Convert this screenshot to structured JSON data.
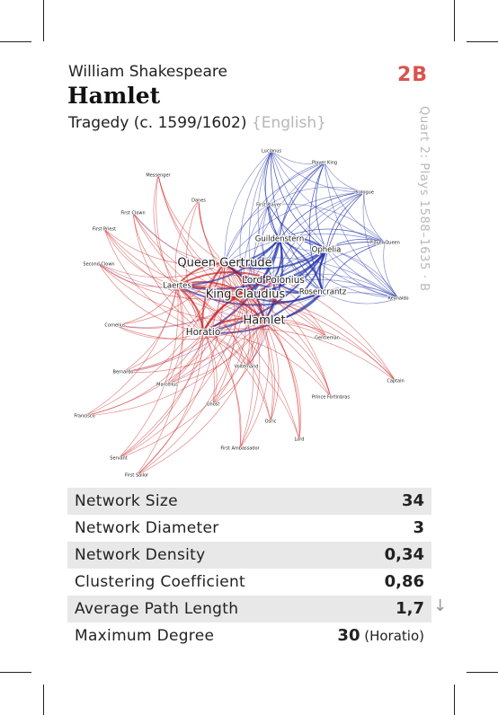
{
  "header": {
    "author": "William Shakespeare",
    "title": "Hamlet",
    "genre": "Tragedy (c. 1599/1602)",
    "language": "{English}",
    "code": "2B",
    "collection": "Quart 2: Plays 1588–1635 · B"
  },
  "network": {
    "colors": {
      "red": "#cc2222",
      "blue": "#2233aa",
      "purple": "#7a3a8a"
    },
    "nodes": [
      {
        "id": "hamlet",
        "label": "Hamlet",
        "size": "large"
      },
      {
        "id": "claudius",
        "label": "King Claudius",
        "size": "large"
      },
      {
        "id": "gertrude",
        "label": "Queen Gertrude",
        "size": "large"
      },
      {
        "id": "polonius",
        "label": "Lord Polonius",
        "size": "medium"
      },
      {
        "id": "horatio",
        "label": "Horatio",
        "size": "medium"
      },
      {
        "id": "laertes",
        "label": "Laertes",
        "size": "small"
      },
      {
        "id": "ophelia",
        "label": "Ophelia",
        "size": "small"
      },
      {
        "id": "rosencrantz",
        "label": "Rosencrantz",
        "size": "small"
      },
      {
        "id": "guildenstern",
        "label": "Guildenstern",
        "size": "small"
      },
      {
        "id": "lucianus",
        "label": "Lucianus",
        "size": "tiny"
      },
      {
        "id": "player_king",
        "label": "Player King",
        "size": "tiny"
      },
      {
        "id": "prologue",
        "label": "Prologue",
        "size": "tiny"
      },
      {
        "id": "player_queen",
        "label": "Player Queen",
        "size": "tiny"
      },
      {
        "id": "first_player",
        "label": "First Player",
        "size": "tiny"
      },
      {
        "id": "messenger",
        "label": "Messenger",
        "size": "tiny"
      },
      {
        "id": "danes",
        "label": "Danes",
        "size": "tiny"
      },
      {
        "id": "first_clown",
        "label": "First Clown",
        "size": "tiny"
      },
      {
        "id": "first_priest",
        "label": "First Priest",
        "size": "tiny"
      },
      {
        "id": "second_clown",
        "label": "Second Clown",
        "size": "tiny"
      },
      {
        "id": "reynaldo",
        "label": "Reynaldo",
        "size": "tiny"
      },
      {
        "id": "cornelius",
        "label": "Cornelius",
        "size": "tiny"
      },
      {
        "id": "gentleman",
        "label": "Gentleman",
        "size": "tiny"
      },
      {
        "id": "bernardo",
        "label": "Bernardo",
        "size": "tiny"
      },
      {
        "id": "voltemand",
        "label": "Voltemand",
        "size": "tiny"
      },
      {
        "id": "marcellus",
        "label": "Marcellus",
        "size": "tiny"
      },
      {
        "id": "captain",
        "label": "Captain",
        "size": "tiny"
      },
      {
        "id": "prince_fortinbras",
        "label": "Prince Fortinbras",
        "size": "tiny"
      },
      {
        "id": "ghost",
        "label": "Ghost",
        "size": "tiny"
      },
      {
        "id": "francisco",
        "label": "Francisco",
        "size": "tiny"
      },
      {
        "id": "osric",
        "label": "Osric",
        "size": "tiny"
      },
      {
        "id": "lord",
        "label": "Lord",
        "size": "tiny"
      },
      {
        "id": "first_ambassador",
        "label": "First Ambassador",
        "size": "tiny"
      },
      {
        "id": "servant",
        "label": "Servant",
        "size": "tiny"
      },
      {
        "id": "first_sailor",
        "label": "First Sailor",
        "size": "tiny"
      }
    ]
  },
  "stats": [
    {
      "label": "Network Size",
      "value": "34",
      "note": ""
    },
    {
      "label": "Network Diameter",
      "value": "3",
      "note": ""
    },
    {
      "label": "Network Density",
      "value": "0,34",
      "note": ""
    },
    {
      "label": "Clustering Coefficient",
      "value": "0,86",
      "note": ""
    },
    {
      "label": "Average Path Length",
      "value": "1,7",
      "note": ""
    },
    {
      "label": "Maximum Degree",
      "value": "30",
      "note": "(Horatio)"
    }
  ]
}
